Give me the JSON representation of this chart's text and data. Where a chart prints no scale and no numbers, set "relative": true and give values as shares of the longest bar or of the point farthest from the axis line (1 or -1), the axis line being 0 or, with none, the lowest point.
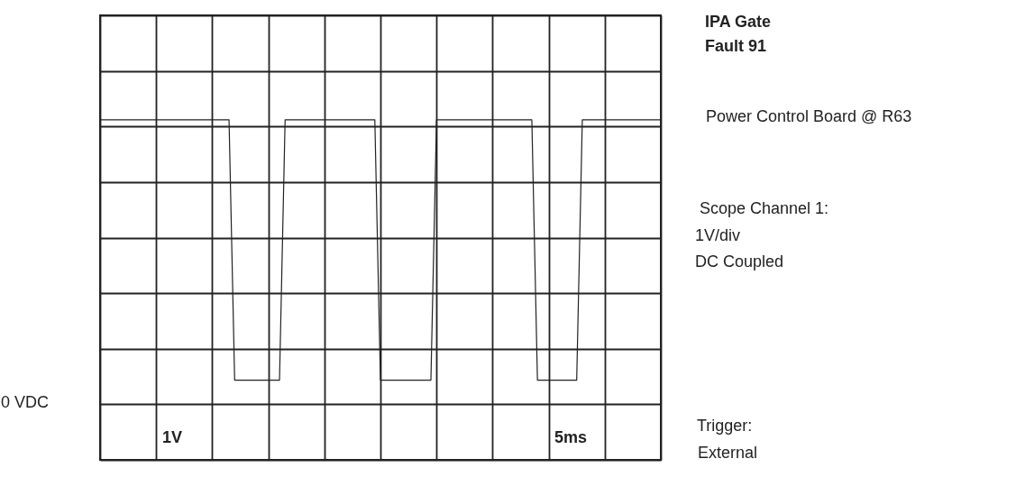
{
  "chart_data": {
    "type": "line",
    "title": "IPA Gate\nFault 91",
    "relative": true,
    "annotations": [
      "Power Control Board @ R63",
      "Scope Channel 1:",
      "1V/div",
      "DC Coupled",
      "Trigger:",
      "External",
      "1V",
      "5ms",
      "0 VDC"
    ],
    "categories": [
      null,
      null,
      null,
      null,
      null,
      null,
      null,
      null,
      null,
      null,
      null,
      null,
      null,
      null,
      null,
      null,
      null,
      null,
      null,
      null,
      null,
      null,
      null,
      null,
      null,
      null,
      null,
      null,
      null,
      null,
      null,
      null,
      null,
      null,
      null,
      null,
      null,
      null,
      null,
      null,
      null,
      null,
      null,
      null,
      null,
      null,
      null,
      null,
      null,
      null,
      null,
      null,
      null,
      null,
      null,
      null,
      null,
      null,
      null,
      null,
      null,
      null,
      null,
      null,
      null,
      null,
      null,
      null,
      null,
      null,
      null,
      null,
      null,
      null,
      null,
      null,
      null,
      null,
      null,
      null,
      null,
      null,
      null,
      null,
      null,
      null,
      null,
      null,
      null,
      null,
      null,
      null,
      null,
      null,
      null,
      null,
      null,
      null,
      null,
      null,
      null
    ],
    "series": [
      {
        "color": "#222222",
        "values": [
          1,
          1,
          1,
          1,
          1,
          1,
          1,
          1,
          1,
          1,
          1,
          1,
          1,
          1,
          1,
          1,
          1,
          1,
          1,
          1,
          1,
          1,
          1,
          1,
          0.085,
          0.085,
          0.085,
          0.085,
          0.085,
          0.085,
          0.085,
          0.085,
          0.085,
          1,
          1,
          1,
          1,
          1,
          1,
          1,
          1,
          1,
          1,
          1,
          1,
          1,
          1,
          1,
          1,
          1,
          0.085,
          0.085,
          0.085,
          0.085,
          0.085,
          0.085,
          0.085,
          0.085,
          0.085,
          0.085,
          1,
          1,
          1,
          1,
          1,
          1,
          1,
          1,
          1,
          1,
          1,
          1,
          1,
          1,
          1,
          1,
          1,
          1,
          0.085,
          0.085,
          0.085,
          0.085,
          0.085,
          0.085,
          0.085,
          0.085,
          1,
          1,
          1,
          1,
          1,
          1,
          1,
          1,
          1,
          1,
          1,
          1,
          1,
          1,
          1
        ]
      }
    ],
    "grid": true,
    "tick_labels": false
  }
}
